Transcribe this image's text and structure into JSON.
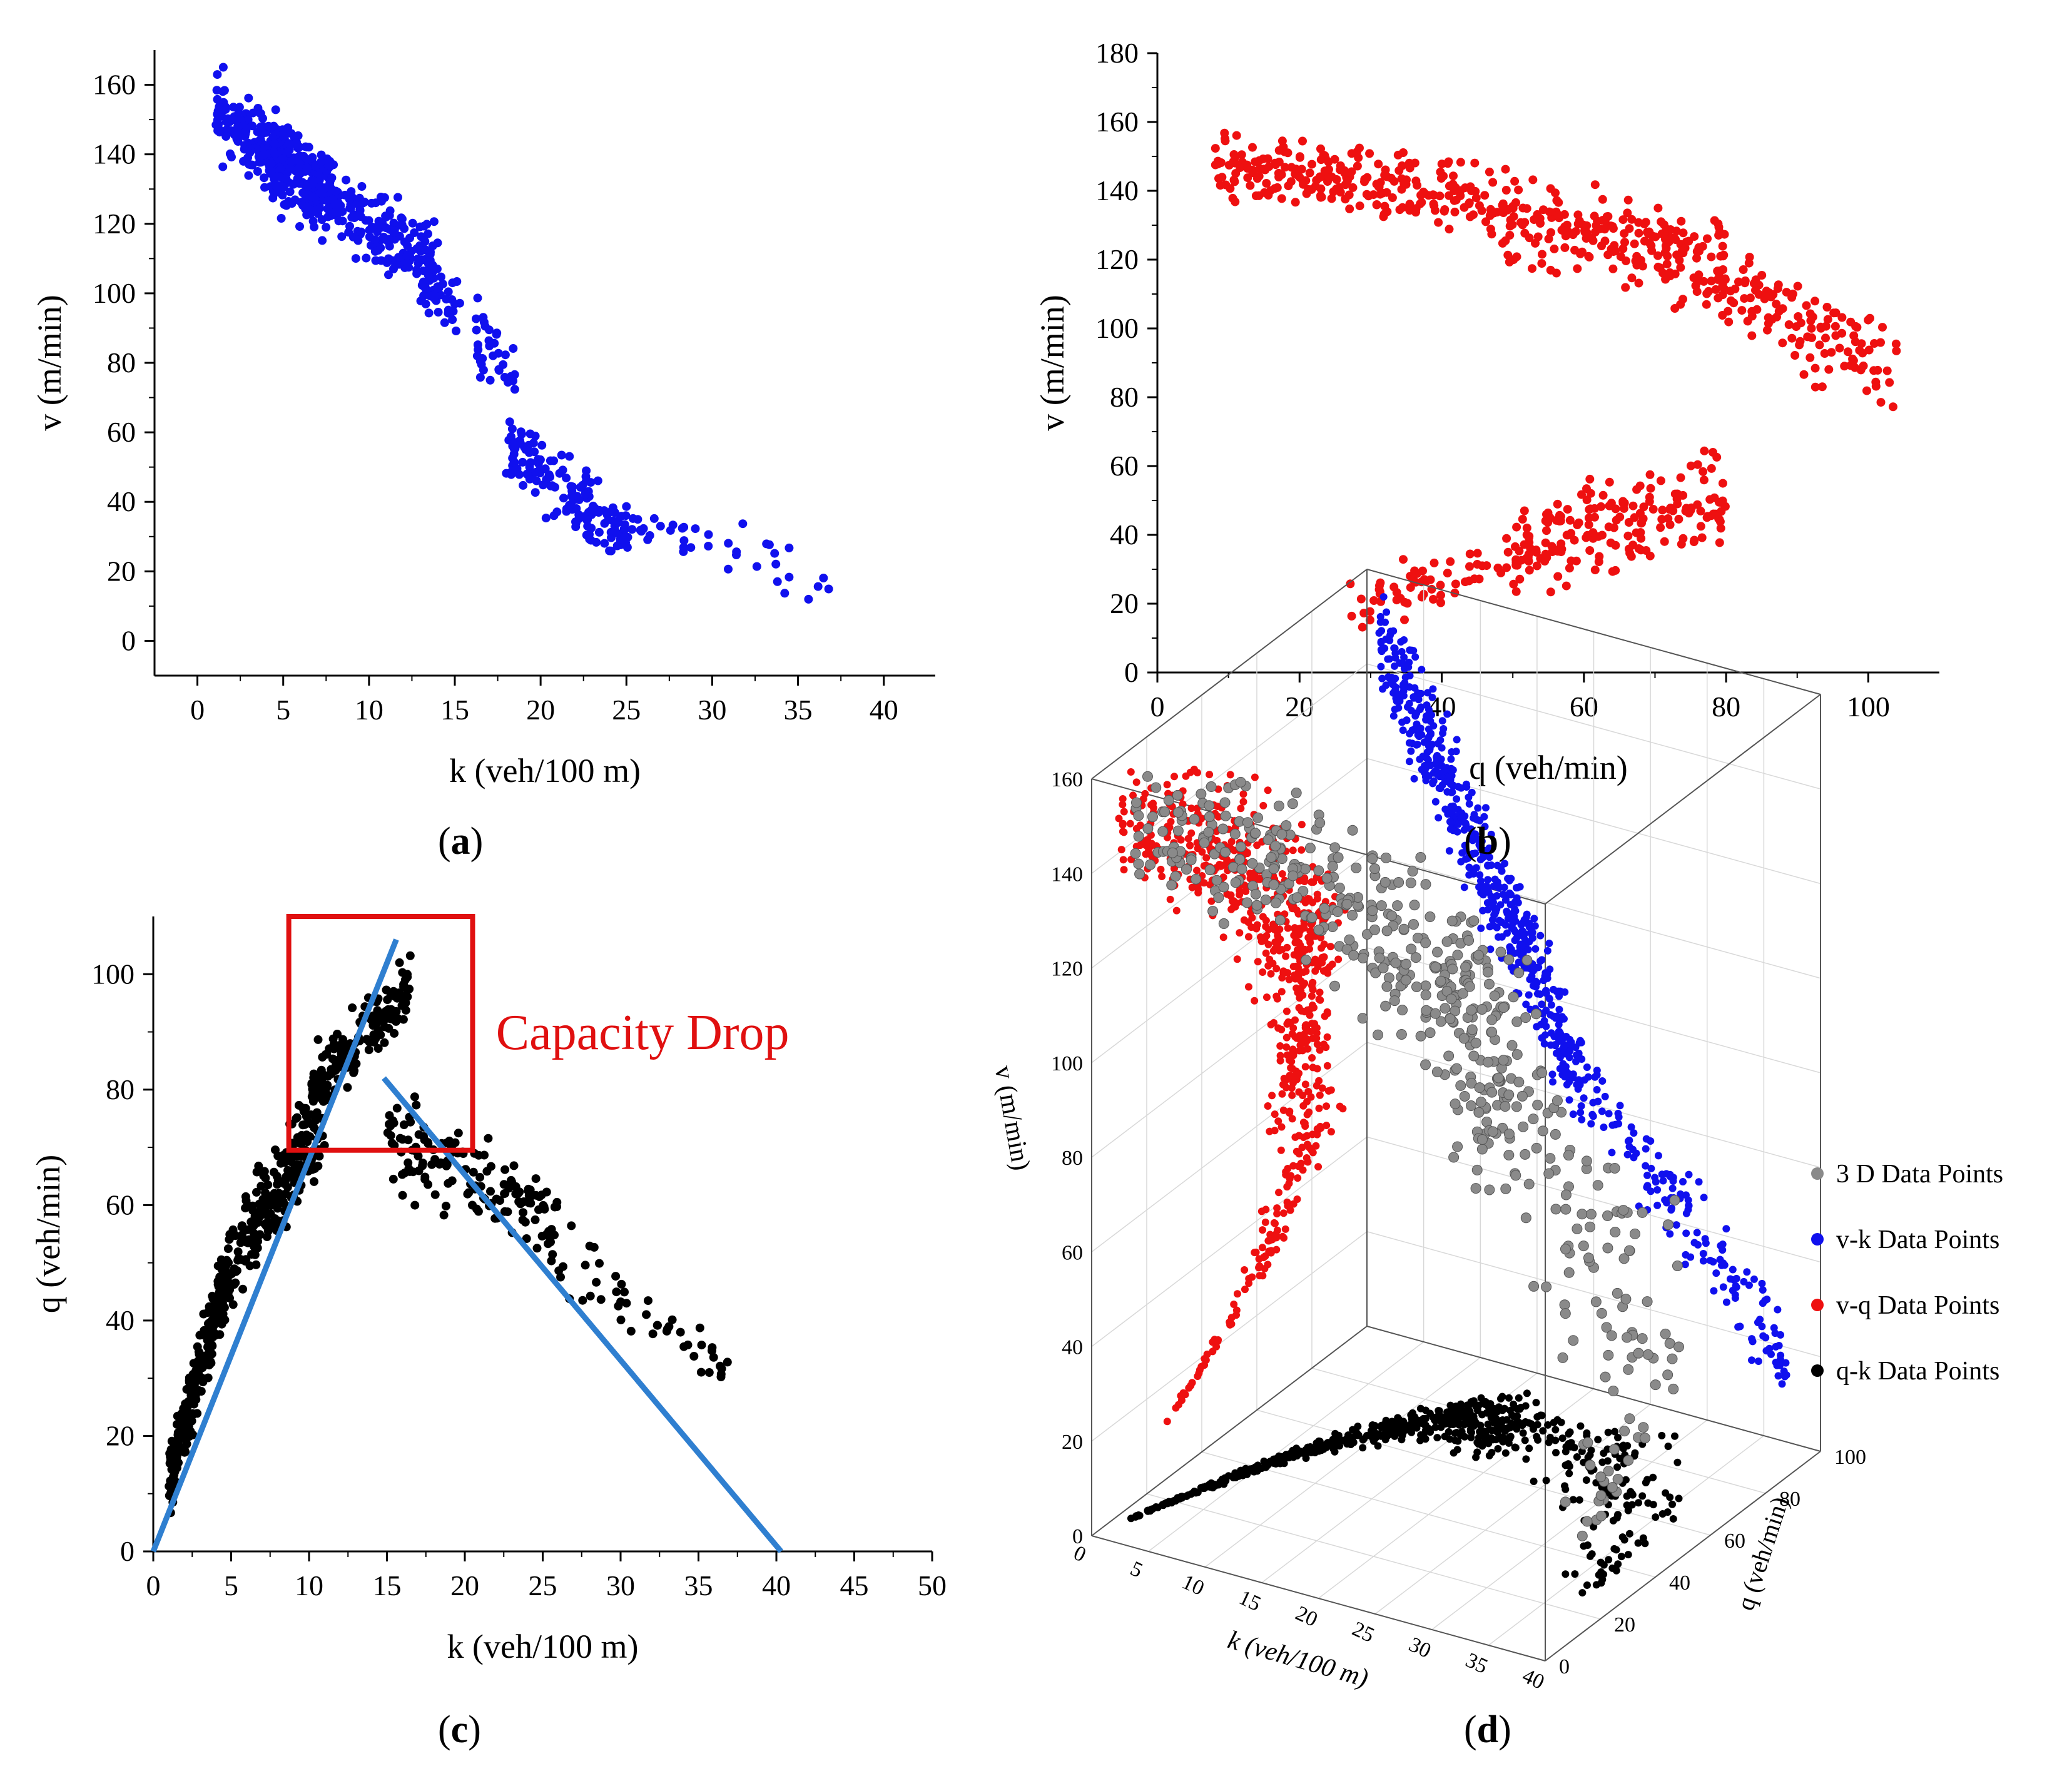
{
  "figure_labels": {
    "a": "a",
    "b": "b",
    "c": "c",
    "d": "d"
  },
  "chart_data": [
    {
      "id": "a",
      "type": "scatter",
      "title": "",
      "xlabel": "k  (veh/100 m)",
      "ylabel": "v  (m/min)",
      "xlim": [
        -2.5,
        43
      ],
      "ylim": [
        -10,
        170
      ],
      "xticks": [
        0,
        5,
        10,
        15,
        20,
        25,
        30,
        35,
        40
      ],
      "yticks": [
        0,
        20,
        40,
        60,
        80,
        100,
        120,
        140,
        160
      ],
      "color": "#1010ee",
      "point_clusters": [
        {
          "x_range": [
            1,
            8
          ],
          "y_center_at_x": [
            1,
            152,
            8,
            128
          ],
          "spread": 9,
          "count": 260
        },
        {
          "x_range": [
            4,
            14
          ],
          "y_center_at_x": [
            4,
            138,
            14,
            108
          ],
          "spread": 10,
          "count": 260
        },
        {
          "x_range": [
            13,
            18.5
          ],
          "y_center_at_x": [
            13,
            105,
            18.5,
            75
          ],
          "spread": 8,
          "count": 70
        },
        {
          "x_range": [
            18,
            25
          ],
          "y_center_at_x": [
            18,
            55,
            25,
            30
          ],
          "spread": 8,
          "count": 150
        },
        {
          "x_range": [
            24,
            37
          ],
          "y_center_at_x": [
            24,
            35,
            37,
            18
          ],
          "spread": 6,
          "count": 45
        }
      ]
    },
    {
      "id": "b",
      "type": "scatter",
      "title": "",
      "xlabel": "q  (veh/min)",
      "ylabel": "v  (m/min)",
      "xlim": [
        0,
        110
      ],
      "ylim": [
        0,
        180
      ],
      "xticks": [
        0,
        20,
        40,
        60,
        80,
        100
      ],
      "yticks": [
        0,
        20,
        40,
        60,
        80,
        100,
        120,
        140,
        160,
        180
      ],
      "color": "#ee1010",
      "point_clusters": [
        {
          "x_range": [
            8,
            45
          ],
          "y_center_at_x": [
            8,
            148,
            45,
            138
          ],
          "spread": 8,
          "count": 230
        },
        {
          "x_range": [
            45,
            80
          ],
          "y_center_at_x": [
            45,
            135,
            80,
            118
          ],
          "spread": 11,
          "count": 230
        },
        {
          "x_range": [
            78,
            104
          ],
          "y_center_at_x": [
            78,
            115,
            104,
            88
          ],
          "spread": 11,
          "count": 130
        },
        {
          "x_range": [
            27,
            50
          ],
          "y_center_at_x": [
            27,
            20,
            50,
            33
          ],
          "spread": 7,
          "count": 60
        },
        {
          "x_range": [
            50,
            80
          ],
          "y_center_at_x": [
            50,
            35,
            80,
            52
          ],
          "spread": 11,
          "count": 190
        }
      ]
    },
    {
      "id": "c",
      "type": "scatter",
      "title": "",
      "xlabel": "k  (veh/100 m)",
      "ylabel": "q  (veh/min)",
      "xlim": [
        0,
        50
      ],
      "ylim": [
        0,
        110
      ],
      "xticks": [
        0,
        5,
        10,
        15,
        20,
        25,
        30,
        35,
        40,
        45,
        50
      ],
      "yticks": [
        0,
        20,
        40,
        60,
        80,
        100
      ],
      "color": "#000000",
      "point_clusters": [
        {
          "x_range": [
            1,
            5
          ],
          "y_center_at_x": [
            1,
            12,
            5,
            50
          ],
          "spread": 5,
          "count": 260
        },
        {
          "x_range": [
            5,
            11
          ],
          "y_center_at_x": [
            5,
            50,
            11,
            76
          ],
          "spread": 7,
          "count": 230
        },
        {
          "x_range": [
            10,
            16.5
          ],
          "y_center_at_x": [
            10,
            80,
            16.5,
            98
          ],
          "spread": 5,
          "count": 160
        },
        {
          "x_range": [
            15,
            26
          ],
          "y_center_at_x": [
            15,
            72,
            26,
            58
          ],
          "spread": 6,
          "count": 150
        },
        {
          "x_range": [
            25,
            37
          ],
          "y_center_at_x": [
            25,
            52,
            37,
            32
          ],
          "spread": 5,
          "count": 50
        }
      ],
      "lines": [
        {
          "name": "free-flow",
          "x": [
            0,
            15.6
          ],
          "y": [
            0,
            106
          ],
          "color": "#2f7fd0"
        },
        {
          "name": "congested",
          "x": [
            14.8,
            40.3
          ],
          "y": [
            82,
            0
          ],
          "color": "#2f7fd0"
        }
      ],
      "highlight_box": {
        "x": [
          8.7,
          20.5
        ],
        "y": [
          69.5,
          110
        ],
        "color": "#e01010"
      },
      "annotation": "Capacity Drop"
    },
    {
      "id": "d",
      "type": "scatter",
      "title": "",
      "xlabel": "k  (veh/100 m)",
      "ylabel": "v  (m/min)",
      "zlabel": "q  (veh/min)",
      "xticks": [
        "0",
        "5",
        "10",
        "15",
        "20",
        "25",
        "30",
        "35",
        "40"
      ],
      "yticks": [
        "0",
        "20",
        "40",
        "60",
        "80",
        "100",
        "120",
        "140",
        "160"
      ],
      "zticks": [
        "0",
        "20",
        "40",
        "60",
        "80",
        "100"
      ],
      "legend": [
        {
          "label": "3 D Data Points",
          "color": "#8a8a8a"
        },
        {
          "label": "v-k Data Points",
          "color": "#1010ee"
        },
        {
          "label": "v-q Data Points",
          "color": "#ee1010"
        },
        {
          "label": "q-k Data Points",
          "color": "#000000"
        }
      ],
      "legend_position": "right"
    }
  ]
}
